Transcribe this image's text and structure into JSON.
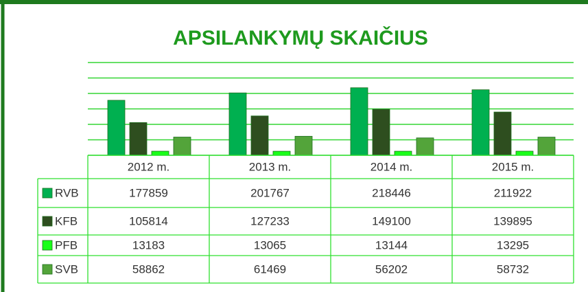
{
  "chart_data": {
    "type": "bar",
    "title": "APSILANKYMŲ SKAIČIUS",
    "categories": [
      "2012 m.",
      "2013 m.",
      "2014 m.",
      "2015 m."
    ],
    "series": [
      {
        "name": "RVB",
        "color": "#00b050",
        "values": [
          177859,
          201767,
          218446,
          211922
        ]
      },
      {
        "name": "KFB",
        "color": "#2e4e1f",
        "values": [
          105814,
          127233,
          149100,
          139895
        ]
      },
      {
        "name": "PFB",
        "color": "#19ff19",
        "values": [
          13183,
          13065,
          13144,
          13295
        ]
      },
      {
        "name": "SVB",
        "color": "#53a43a",
        "values": [
          58862,
          61469,
          56202,
          58732
        ]
      }
    ],
    "ylim": [
      0,
      300000
    ],
    "yticks": [
      0,
      50000,
      100000,
      150000,
      200000,
      250000,
      300000
    ],
    "grid": true
  }
}
